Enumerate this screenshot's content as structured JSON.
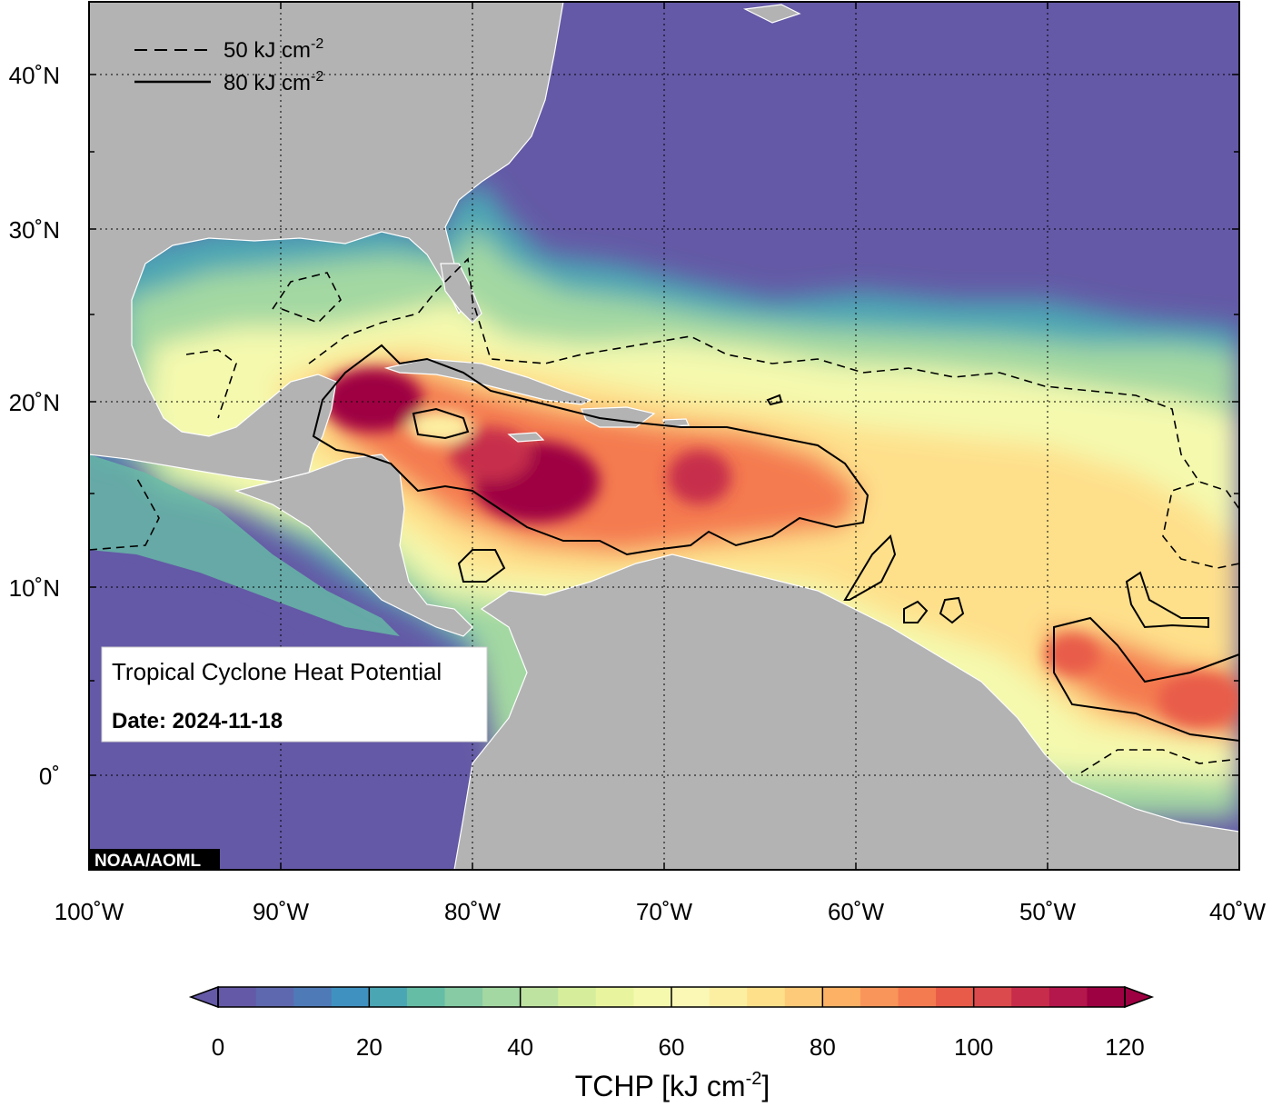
{
  "map": {
    "title": "Tropical Cyclone Heat Potential",
    "date_label": "Date: 2024-11-18",
    "credit": "NOAA/AOML",
    "legend": {
      "dashed_label": "50 kJ cm",
      "solid_label": "80 kJ cm",
      "unit_exponent": "-2"
    },
    "lon_ticks": [
      "100˚W",
      "90˚W",
      "80˚W",
      "70˚W",
      "60˚W",
      "50˚W",
      "40˚W"
    ],
    "lat_ticks": [
      "40˚N",
      "30˚N",
      "20˚N",
      "10˚N",
      "0˚"
    ],
    "colors": {
      "land": "#b3b3b3",
      "ocean_low": "#6459a6",
      "ocean_mid": "#f8f6b0",
      "ocean_high": "#9e0142"
    }
  },
  "colorbar": {
    "label_main": "TCHP [kJ cm",
    "label_exponent": "-2",
    "label_close": "]",
    "ticks": [
      "0",
      "20",
      "40",
      "60",
      "80",
      "100",
      "120"
    ],
    "min": 0,
    "max": 120,
    "palette": [
      "#6459a6",
      "#5e68ae",
      "#4f7ab8",
      "#3f92c0",
      "#4ba6b4",
      "#66bda6",
      "#86cba4",
      "#a3d8a2",
      "#bee3a1",
      "#d6ee9c",
      "#e9f59e",
      "#f4f9ae",
      "#fbf8b6",
      "#fdefa2",
      "#fee08b",
      "#fdca79",
      "#fdb165",
      "#f9955a",
      "#f47a50",
      "#e85b48",
      "#db4a4c",
      "#c72d4b",
      "#b4174c",
      "#9e0142"
    ]
  }
}
